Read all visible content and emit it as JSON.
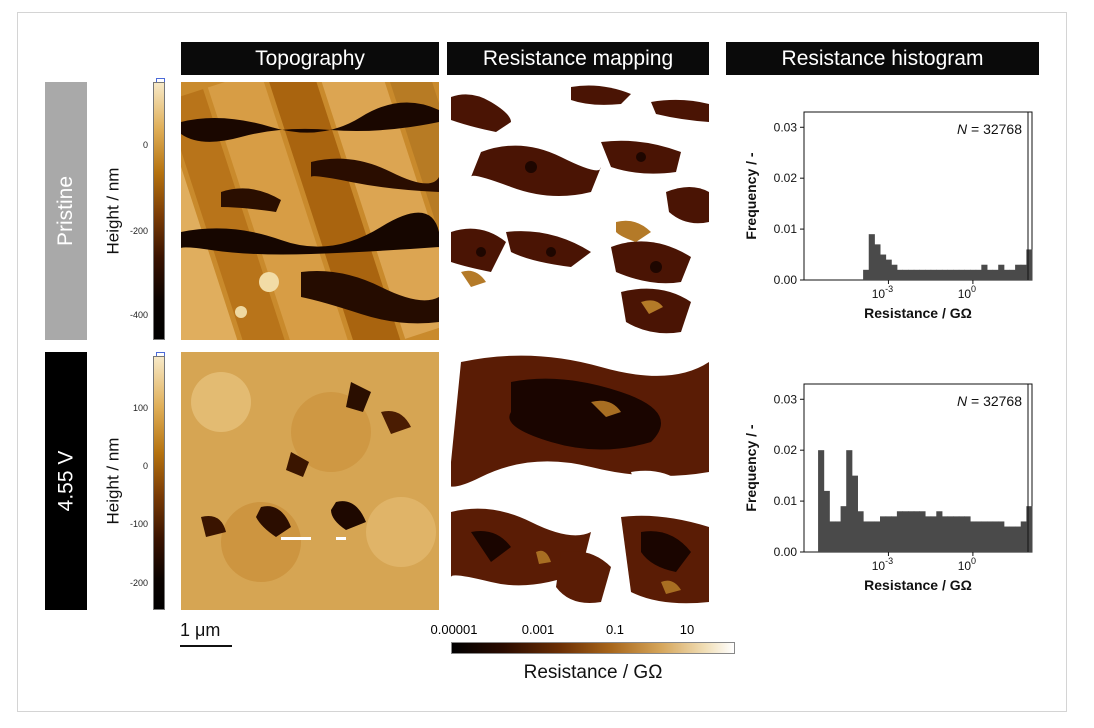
{
  "headers": {
    "topography": "Topography",
    "resistance_mapping": "Resistance mapping",
    "resistance_histogram": "Resistance histogram"
  },
  "rows": [
    {
      "label": "Pristine",
      "height_axis": {
        "label": "Height / nm",
        "ticks": [
          "0",
          "-200",
          "-400"
        ]
      },
      "histogram": {
        "n_label": "N",
        "n_value": "= 32768"
      }
    },
    {
      "label": "4.55 V",
      "height_axis": {
        "label": "Height / nm",
        "ticks": [
          "100",
          "0",
          "-100",
          "-200"
        ]
      },
      "histogram": {
        "n_label": "N",
        "n_value": "= 32768"
      }
    }
  ],
  "scale_bar": "1 μm",
  "resistance_colorbar": {
    "ticks": [
      "0.00001",
      "0.001",
      "0.1",
      "10"
    ],
    "label": "Resistance / GΩ"
  },
  "colors": {
    "height_colormap": [
      "#0b0300",
      "#3a1300",
      "#7a3b05",
      "#b5720f",
      "#dfae57",
      "#f7e9c7"
    ],
    "histogram_fill": "#4a4a4a",
    "pristine_label_bg": "#a9a9a9",
    "bias_label_bg": "#000000"
  },
  "chart_data": [
    {
      "type": "bar",
      "panel": "Pristine",
      "xlabel": "Resistance / GΩ",
      "ylabel": "Frequency / -",
      "x_scale": "log",
      "x_ticks": [
        "10^-3",
        "10^0"
      ],
      "y_ticks": [
        "0.00",
        "0.01",
        "0.02",
        "0.03"
      ],
      "ylim": [
        0,
        0.033
      ],
      "annotation": "N = 32768",
      "x_log10": [
        -4.4,
        -4.2,
        -4.0,
        -3.8,
        -3.6,
        -3.4,
        -3.2,
        -3.0,
        -2.8,
        -2.6,
        -2.4,
        -2.2,
        -2.0,
        -1.8,
        -1.6,
        -1.4,
        -1.2,
        -1.0,
        -0.8,
        -0.6,
        -0.4,
        -0.2,
        0.0,
        0.2,
        0.4,
        0.6,
        0.8,
        1.0,
        1.2,
        1.4,
        1.6,
        1.8,
        2.0
      ],
      "values": [
        0.0,
        0.0,
        0.0,
        0.002,
        0.009,
        0.007,
        0.005,
        0.004,
        0.003,
        0.002,
        0.002,
        0.002,
        0.002,
        0.002,
        0.002,
        0.002,
        0.002,
        0.002,
        0.002,
        0.002,
        0.002,
        0.002,
        0.002,
        0.002,
        0.003,
        0.002,
        0.002,
        0.003,
        0.002,
        0.002,
        0.003,
        0.003,
        0.006
      ]
    },
    {
      "type": "bar",
      "panel": "4.55 V",
      "xlabel": "Resistance / GΩ",
      "ylabel": "Frequency / -",
      "x_scale": "log",
      "x_ticks": [
        "10^-3",
        "10^0"
      ],
      "y_ticks": [
        "0.00",
        "0.01",
        "0.02",
        "0.03"
      ],
      "ylim": [
        0,
        0.033
      ],
      "annotation": "N = 32768",
      "x_log10": [
        -5.4,
        -5.2,
        -5.0,
        -4.8,
        -4.6,
        -4.4,
        -4.2,
        -4.0,
        -3.8,
        -3.6,
        -3.4,
        -3.2,
        -3.0,
        -2.8,
        -2.6,
        -2.4,
        -2.2,
        -2.0,
        -1.8,
        -1.6,
        -1.4,
        -1.2,
        -1.0,
        -0.8,
        -0.6,
        -0.4,
        -0.2,
        0.0,
        0.2,
        0.4,
        0.6,
        0.8,
        1.0,
        1.2,
        1.4,
        1.6,
        1.8,
        2.0
      ],
      "values": [
        0.02,
        0.012,
        0.006,
        0.006,
        0.009,
        0.02,
        0.015,
        0.008,
        0.006,
        0.006,
        0.006,
        0.007,
        0.007,
        0.007,
        0.008,
        0.008,
        0.008,
        0.008,
        0.008,
        0.007,
        0.007,
        0.008,
        0.007,
        0.007,
        0.007,
        0.007,
        0.007,
        0.006,
        0.006,
        0.006,
        0.006,
        0.006,
        0.006,
        0.005,
        0.005,
        0.005,
        0.006,
        0.009
      ]
    }
  ]
}
